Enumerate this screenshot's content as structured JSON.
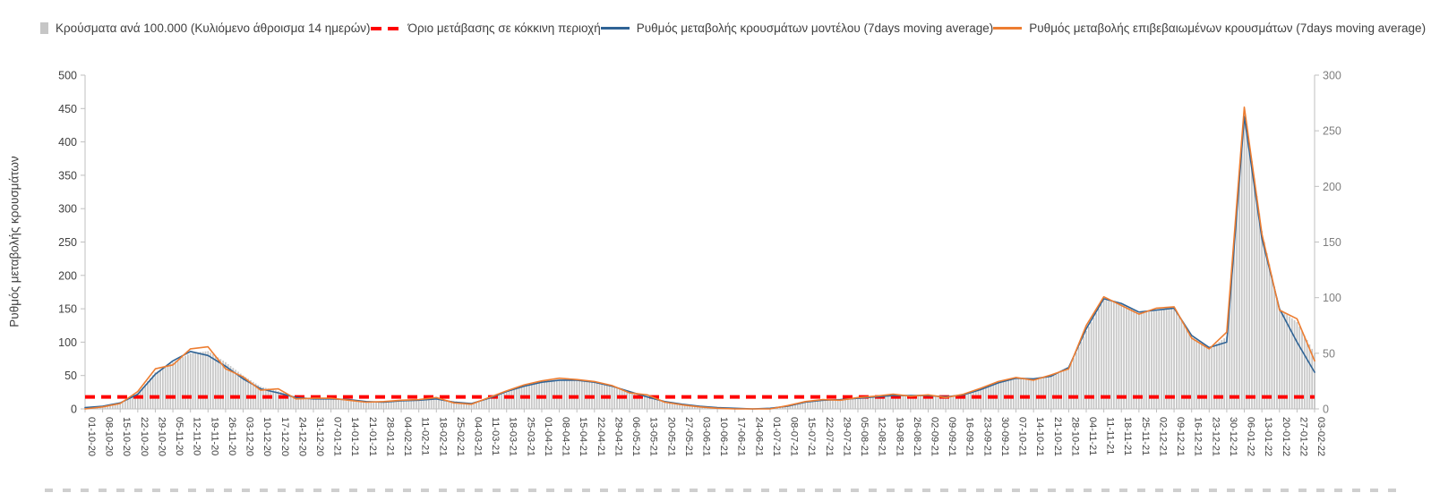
{
  "legend": {
    "items": [
      {
        "label": "Κρούσματα ανά 100.000 (Κυλιόμενο άθροισμα 14 ημερών)",
        "swatch": "bar",
        "color": "#C6C6C6"
      },
      {
        "label": "Όριο μετάβασης σε κόκκινη περιοχή",
        "swatch": "dashed",
        "color": "#FF0000"
      },
      {
        "label": "Ρυθμός μεταβολής κρουσμάτων μοντέλου (7days moving average)",
        "swatch": "line",
        "color": "#2F6395"
      },
      {
        "label": "Ρυθμός μεταβολής επιβεβαιωμένων κρουσμάτων (7days moving average)",
        "swatch": "line",
        "color": "#ED7D31"
      }
    ]
  },
  "chart_data": {
    "type": "combo",
    "title": "",
    "ylabel_left": "Ρυθμός μεταβολής κρουσμάτων",
    "axis_left": {
      "min": 0,
      "max": 500,
      "step": 50
    },
    "axis_right": {
      "min": 0,
      "max": 300,
      "step": 50
    },
    "ticks_left": [
      0,
      50,
      100,
      150,
      200,
      250,
      300,
      350,
      400,
      450,
      500
    ],
    "ticks_right": [
      0,
      50,
      100,
      150,
      200,
      250,
      300
    ],
    "legend_position": "top",
    "grid": false,
    "categories": [
      "01-10-20",
      "08-10-20",
      "15-10-20",
      "22-10-20",
      "29-10-20",
      "05-11-20",
      "12-11-20",
      "19-11-20",
      "26-11-20",
      "03-12-20",
      "10-12-20",
      "17-12-20",
      "24-12-20",
      "31-12-20",
      "07-01-21",
      "14-01-21",
      "21-01-21",
      "28-01-21",
      "04-02-21",
      "11-02-21",
      "18-02-21",
      "25-02-21",
      "04-03-21",
      "11-03-21",
      "18-03-21",
      "25-03-21",
      "01-04-21",
      "08-04-21",
      "15-04-21",
      "22-04-21",
      "29-04-21",
      "06-05-21",
      "13-05-21",
      "20-05-21",
      "27-05-21",
      "03-06-21",
      "10-06-21",
      "17-06-21",
      "24-06-21",
      "01-07-21",
      "08-07-21",
      "15-07-21",
      "22-07-21",
      "29-07-21",
      "05-08-21",
      "12-08-21",
      "19-08-21",
      "26-08-21",
      "02-09-21",
      "09-09-21",
      "16-09-21",
      "23-09-21",
      "30-09-21",
      "07-10-21",
      "14-10-21",
      "21-10-21",
      "28-10-21",
      "04-11-21",
      "11-11-21",
      "18-11-21",
      "25-11-21",
      "02-12-21",
      "09-12-21",
      "16-12-21",
      "23-12-21",
      "30-12-21",
      "06-01-22",
      "13-01-22",
      "20-01-22",
      "27-01-22",
      "03-02-22"
    ],
    "series": [
      {
        "name": "Κρούσματα ανά 100.000 (Κυλιόμενο άθροισμα 14 ημερών)",
        "name_key": "cases-per-100k",
        "type": "bar",
        "axis": "right",
        "color": "#C6C6C6",
        "values": [
          1,
          2,
          5,
          14,
          33,
          42,
          50,
          52,
          42,
          30,
          20,
          16,
          11,
          9,
          9,
          8,
          7,
          6,
          7,
          8,
          9,
          7,
          5,
          9,
          15,
          20,
          24,
          26,
          26,
          24,
          21,
          16,
          12,
          7,
          4,
          2,
          1,
          1,
          0,
          0,
          2,
          6,
          8,
          8,
          9,
          11,
          12,
          12,
          12,
          11,
          12,
          17,
          23,
          27,
          27,
          29,
          36,
          70,
          98,
          95,
          86,
          88,
          90,
          66,
          54,
          65,
          270,
          160,
          90,
          78,
          50
        ]
      },
      {
        "name": "Όριο μετάβασης σε κόκκινη περιοχή",
        "name_key": "threshold",
        "type": "threshold",
        "axis": "left",
        "color": "#FF0000",
        "value": 18
      },
      {
        "name": "Ρυθμός μεταβολής κρουσμάτων μοντέλου (7days moving average)",
        "name_key": "model",
        "type": "line",
        "axis": "left",
        "color": "#2F6395",
        "values": [
          2,
          4,
          9,
          22,
          52,
          72,
          86,
          80,
          64,
          45,
          30,
          24,
          17,
          15,
          15,
          14,
          11,
          10,
          12,
          13,
          15,
          10,
          8,
          16,
          26,
          34,
          40,
          43,
          43,
          40,
          34,
          26,
          18,
          11,
          7,
          4,
          2,
          1,
          0,
          1,
          4,
          10,
          13,
          14,
          16,
          18,
          20,
          20,
          20,
          18,
          21,
          29,
          39,
          46,
          45,
          49,
          62,
          120,
          165,
          158,
          145,
          148,
          151,
          110,
          92,
          100,
          438,
          255,
          150,
          100,
          55
        ]
      },
      {
        "name": "Ρυθμός μεταβολής επιβεβαιωμένων κρουσμάτων (7days moving average)",
        "name_key": "confirmed",
        "type": "line",
        "axis": "left",
        "color": "#ED7D31",
        "values": [
          0,
          3,
          8,
          26,
          60,
          66,
          90,
          93,
          60,
          48,
          28,
          30,
          15,
          16,
          16,
          13,
          10,
          11,
          13,
          14,
          17,
          9,
          7,
          17,
          27,
          36,
          42,
          46,
          44,
          41,
          35,
          24,
          21,
          10,
          6,
          3,
          1,
          0,
          0,
          0,
          5,
          11,
          14,
          13,
          17,
          19,
          22,
          19,
          21,
          17,
          22,
          31,
          41,
          47,
          43,
          51,
          60,
          125,
          168,
          155,
          142,
          151,
          153,
          106,
          90,
          115,
          452,
          262,
          148,
          135,
          72
        ]
      }
    ]
  }
}
